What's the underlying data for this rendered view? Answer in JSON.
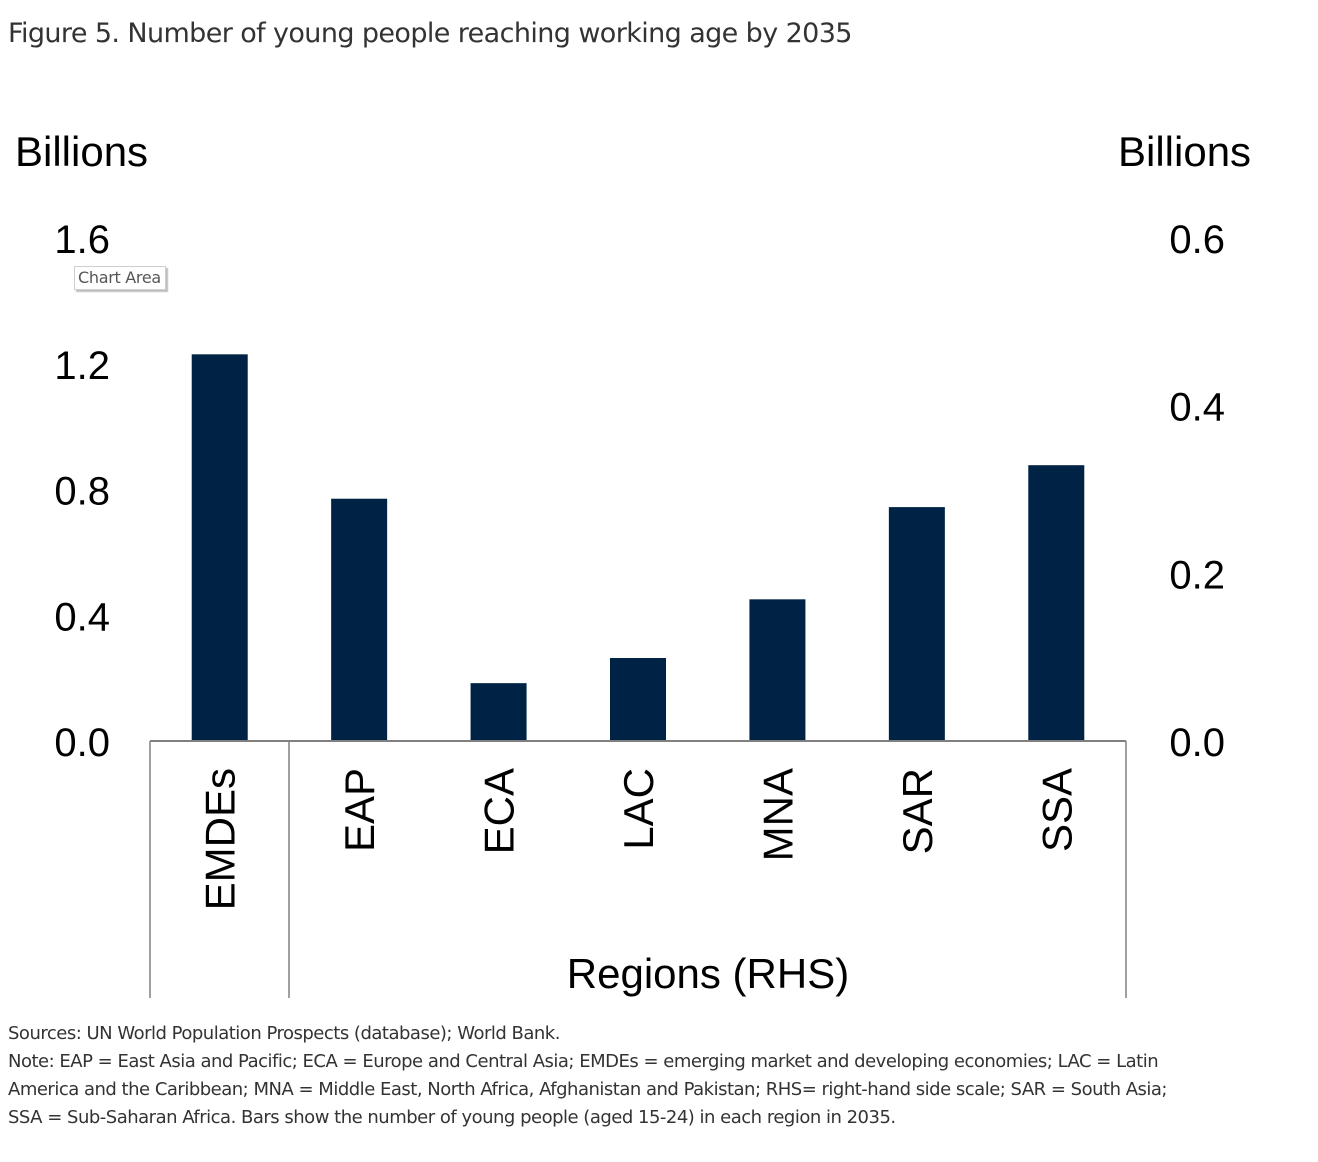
{
  "figure": {
    "title": "Figure 5. Number of young people reaching working age by 2035"
  },
  "tooltip": {
    "label": "Chart Area"
  },
  "chart_data": {
    "type": "bar",
    "title": "Figure 5. Number of young people reaching working age by 2035",
    "categories": [
      "EMDEs",
      "EAP",
      "ECA",
      "LAC",
      "MNA",
      "SAR",
      "SSA"
    ],
    "series": [
      {
        "name": "EMDEs",
        "axis": "left",
        "values": [
          1.23,
          null,
          null,
          null,
          null,
          null,
          null
        ]
      },
      {
        "name": "Regions (RHS)",
        "axis": "right",
        "values": [
          null,
          0.289,
          0.069,
          0.099,
          0.169,
          0.279,
          0.329
        ]
      }
    ],
    "values": [
      1.23,
      0.289,
      0.069,
      0.099,
      0.169,
      0.279,
      0.329
    ],
    "bar_color": "#002244",
    "left_axis": {
      "label": "Billions",
      "ylim": [
        0,
        1.6
      ],
      "ticks": [
        "0.0",
        "0.4",
        "0.8",
        "1.2",
        "1.6"
      ],
      "tick_values": [
        0,
        0.4,
        0.8,
        1.2,
        1.6
      ]
    },
    "right_axis": {
      "label": "Billions",
      "ylim": [
        0,
        0.6
      ],
      "ticks": [
        "0.0",
        "0.2",
        "0.4",
        "0.6"
      ],
      "tick_values": [
        0,
        0.2,
        0.4,
        0.6
      ]
    },
    "group_label": "Regions (RHS)",
    "xlabel": "",
    "grid": false,
    "legend": "none"
  },
  "notes": {
    "sources": "Sources: UN World Population Prospects (database); World Bank.",
    "note_line1": "Note: EAP = East Asia and Pacific; ECA = Europe and Central Asia; EMDEs = emerging market and developing economies; LAC = Latin",
    "note_line2": "America and the Caribbean; MNA = Middle East, North Africa, Afghanistan and Pakistan; RHS= right-hand side scale; SAR = South Asia;",
    "note_line3": "SSA = Sub-Saharan Africa. Bars show the number of young people (aged 15-24) in each region in 2035."
  }
}
